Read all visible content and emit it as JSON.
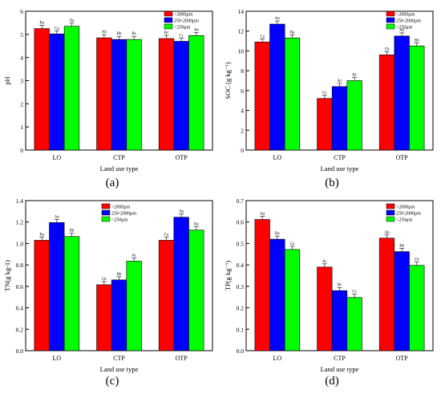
{
  "figure": {
    "panel_labels": [
      "(a)",
      "(b)",
      "(c)",
      "(d)"
    ]
  },
  "colors": {
    "series": [
      "#ff0000",
      "#0000ff",
      "#00ff00"
    ],
    "axis": "#000000",
    "background": "#ffffff"
  },
  "chart_data": [
    {
      "type": "bar",
      "panel": "(a)",
      "categories": [
        "LO",
        "CTP",
        "OTP"
      ],
      "xlabel": "Land use type",
      "ylabel": "pH",
      "ylim": [
        0,
        6
      ],
      "yticks": [
        "0",
        "1",
        "2",
        "3",
        "4",
        "5",
        "6"
      ],
      "legend_position": "top-right",
      "series": [
        {
          "name": ">2000μm",
          "values": [
            5.25,
            4.85,
            4.82
          ],
          "letters": [
            "Ba",
            "Ab",
            "Bc"
          ]
        },
        {
          "name": "250-2000μm",
          "values": [
            5.02,
            4.78,
            4.7
          ],
          "letters": [
            "Ca",
            "Bb",
            "Cc"
          ]
        },
        {
          "name": "<250μm",
          "values": [
            5.35,
            4.78,
            4.95
          ],
          "letters": [
            "Aa",
            "Bc",
            "Ab"
          ]
        }
      ]
    },
    {
      "type": "bar",
      "panel": "(b)",
      "categories": [
        "LO",
        "CTP",
        "OTP"
      ],
      "xlabel": "Land use type",
      "ylabel": "SOC (g kg⁻¹)",
      "ylim": [
        0,
        14
      ],
      "yticks": [
        "0",
        "2",
        "4",
        "6",
        "8",
        "10",
        "12",
        "14"
      ],
      "legend_position": "top-right",
      "series": [
        {
          "name": ">2000μm",
          "values": [
            10.9,
            5.2,
            9.6
          ],
          "letters": [
            "Ca",
            "Cc",
            "Cb"
          ]
        },
        {
          "name": "250-2000μm",
          "values": [
            12.7,
            6.4,
            11.5
          ],
          "letters": [
            "Aa",
            "Ac",
            "Ab"
          ]
        },
        {
          "name": "<250μm",
          "values": [
            11.3,
            7.0,
            10.5
          ],
          "letters": [
            "Ba",
            "Bc",
            "Bb"
          ]
        }
      ]
    },
    {
      "type": "bar",
      "panel": "(c)",
      "categories": [
        "LO",
        "CTP",
        "OTP"
      ],
      "xlabel": "Land use type",
      "ylabel": "TN(g kg-1)",
      "ylim": [
        0,
        1.4
      ],
      "yticks": [
        "0.0",
        "0.2",
        "0.4",
        "0.6",
        "0.8",
        "1.0",
        "1.2",
        "1.4"
      ],
      "legend_position": "top-center",
      "series": [
        {
          "name": ">2000μm",
          "values": [
            1.03,
            0.615,
            1.03
          ],
          "letters": [
            "Ba",
            "Cb",
            "Ca"
          ]
        },
        {
          "name": "250-2000μm",
          "values": [
            1.195,
            0.66,
            1.245
          ],
          "letters": [
            "Aa",
            "Bb",
            "Aa"
          ]
        },
        {
          "name": "<250μm",
          "values": [
            1.065,
            0.835,
            1.125
          ],
          "letters": [
            "Bb",
            "Ac",
            "Ba"
          ]
        }
      ]
    },
    {
      "type": "bar",
      "panel": "(d)",
      "categories": [
        "LO",
        "CTP",
        "OTP"
      ],
      "xlabel": "Land use type",
      "ylabel": "TP(g kg⁻¹)",
      "ylim": [
        0,
        0.7
      ],
      "yticks": [
        "0.0",
        "0.1",
        "0.2",
        "0.3",
        "0.4",
        "0.5",
        "0.6",
        "0.7"
      ],
      "legend_position": "top-right",
      "series": [
        {
          "name": ">2000μm",
          "values": [
            0.612,
            0.39,
            0.525
          ],
          "letters": [
            "Aa",
            "Ac",
            "Ab"
          ]
        },
        {
          "name": "250-2000μm",
          "values": [
            0.52,
            0.28,
            0.462
          ],
          "letters": [
            "Ba",
            "Bc",
            "Bb"
          ]
        },
        {
          "name": "<250μm",
          "values": [
            0.472,
            0.248,
            0.398
          ],
          "letters": [
            "Ca",
            "Cc",
            "Cb"
          ]
        }
      ]
    }
  ]
}
